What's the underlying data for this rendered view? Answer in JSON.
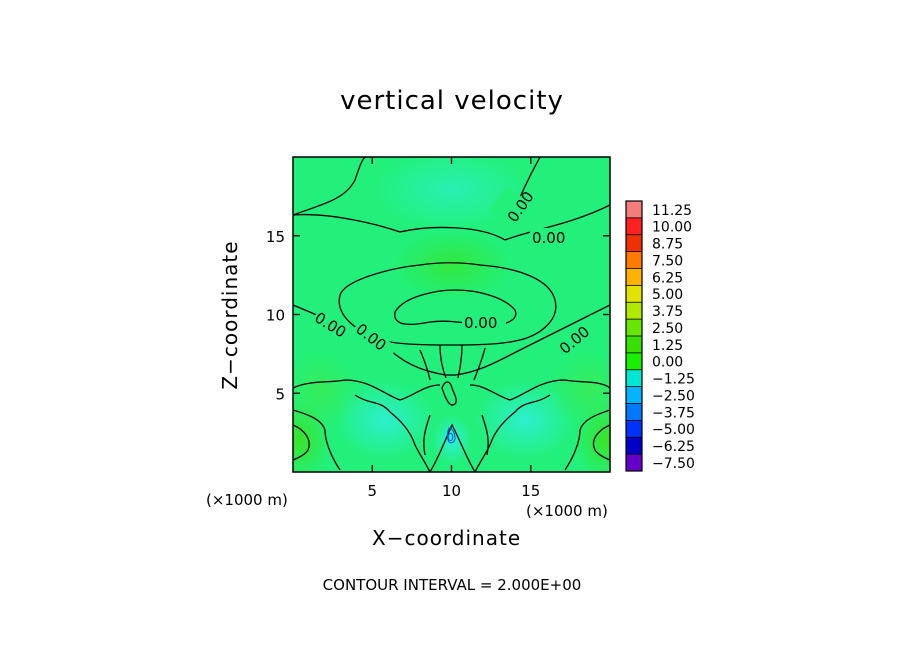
{
  "chart_data": {
    "type": "heatmap",
    "title": "vertical velocity",
    "xlabel": "X−coordinate",
    "ylabel": "Z−coordinate",
    "x_unit_left": "(×1000 m)",
    "x_unit_right": "(×1000 m)",
    "xlim": [
      0,
      20
    ],
    "ylim": [
      0,
      20
    ],
    "x_ticks": [
      5,
      10,
      15
    ],
    "x_tick_labels": [
      "5",
      "10",
      "15"
    ],
    "y_ticks": [
      5,
      10,
      15
    ],
    "y_tick_labels": [
      "5",
      "10",
      "15"
    ],
    "contour_labels": [
      "0.00",
      "0.00",
      "0.00",
      "0.00",
      "0.00",
      "0.00",
      "0.00",
      "0"
    ],
    "contour_interval_text": "CONTOUR INTERVAL = 2.000E+00",
    "colorbar": {
      "labels": [
        "11.25",
        "10.00",
        "8.75",
        "7.50",
        "6.25",
        "5.00",
        "3.75",
        "2.50",
        "1.25",
        "0.00",
        "−1.25",
        "−2.50",
        "−3.75",
        "−5.00",
        "−6.25",
        "−7.50"
      ],
      "colors": [
        "#f47c7c",
        "#ff2020",
        "#f03000",
        "#ff7a00",
        "#ffb300",
        "#e3e300",
        "#b0e800",
        "#66e600",
        "#38e000",
        "#19f000",
        "#00e6d2",
        "#00b4ff",
        "#0078ff",
        "#0032ff",
        "#0000c8",
        "#6400c8"
      ]
    }
  }
}
